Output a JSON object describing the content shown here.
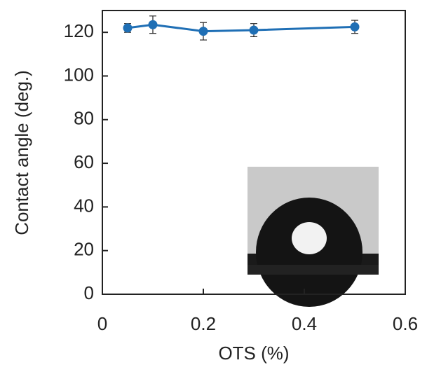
{
  "chart_data": {
    "type": "line",
    "x_label": "OTS (%)",
    "y_label": "Contact angle (deg.)",
    "x": [
      0.05,
      0.1,
      0.2,
      0.3,
      0.5
    ],
    "series": [
      {
        "color": "#1f6fb5",
        "values": [
          122,
          123.5,
          120.5,
          121,
          122.5
        ],
        "errors": [
          2,
          4,
          4,
          3,
          3
        ]
      }
    ],
    "xlim": [
      0,
      0.6
    ],
    "xticks": [
      0,
      0.2,
      0.4,
      0.6
    ],
    "ylim": [
      0,
      130
    ],
    "yticks": [
      0,
      20,
      40,
      60,
      80,
      100,
      120
    ]
  }
}
